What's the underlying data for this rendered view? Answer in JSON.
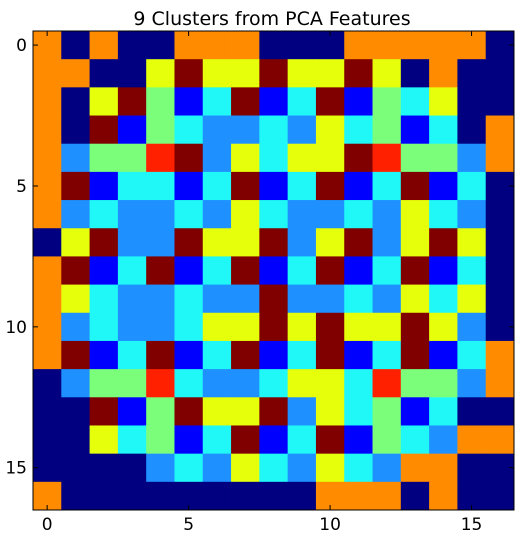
{
  "chart_data": {
    "type": "heatmap",
    "title": "9 Clusters from PCA Features",
    "xlabel": "",
    "ylabel": "",
    "xlim": [
      -0.5,
      16.5
    ],
    "ylim": [
      16.5,
      -0.5
    ],
    "x_ticks": [
      0,
      5,
      10,
      15
    ],
    "y_ticks": [
      0,
      5,
      10,
      15
    ],
    "colormap": "jet",
    "cluster_colors": [
      "#000080",
      "#ff8c00",
      "#e6ff0a",
      "#800000",
      "#0000ff",
      "#20f8f8",
      "#7bff7b",
      "#ff2000",
      "#1e90ff"
    ],
    "grid": [
      [
        1,
        0,
        1,
        0,
        0,
        1,
        1,
        1,
        0,
        0,
        0,
        1,
        1,
        1,
        1,
        1,
        0
      ],
      [
        1,
        1,
        0,
        0,
        2,
        3,
        2,
        2,
        3,
        2,
        2,
        3,
        2,
        0,
        1,
        0,
        0
      ],
      [
        1,
        0,
        2,
        3,
        6,
        4,
        5,
        3,
        4,
        5,
        3,
        4,
        6,
        5,
        2,
        0,
        0
      ],
      [
        1,
        0,
        3,
        4,
        6,
        5,
        8,
        8,
        5,
        8,
        2,
        5,
        6,
        4,
        5,
        0,
        1
      ],
      [
        1,
        8,
        6,
        6,
        7,
        3,
        8,
        2,
        5,
        2,
        2,
        3,
        7,
        6,
        6,
        8,
        1
      ],
      [
        1,
        3,
        4,
        5,
        5,
        4,
        5,
        3,
        4,
        5,
        3,
        4,
        5,
        3,
        4,
        5,
        0
      ],
      [
        1,
        8,
        5,
        8,
        8,
        5,
        8,
        2,
        5,
        8,
        8,
        5,
        8,
        2,
        5,
        8,
        0
      ],
      [
        0,
        2,
        3,
        8,
        8,
        3,
        2,
        2,
        3,
        8,
        2,
        3,
        8,
        2,
        3,
        2,
        0
      ],
      [
        1,
        3,
        4,
        5,
        3,
        4,
        5,
        3,
        4,
        5,
        3,
        4,
        5,
        3,
        4,
        5,
        0
      ],
      [
        1,
        2,
        5,
        8,
        8,
        5,
        8,
        8,
        3,
        8,
        8,
        5,
        8,
        2,
        5,
        2,
        0
      ],
      [
        1,
        8,
        5,
        8,
        8,
        5,
        2,
        2,
        3,
        2,
        3,
        2,
        2,
        3,
        2,
        8,
        0
      ],
      [
        1,
        3,
        4,
        5,
        3,
        4,
        5,
        3,
        4,
        5,
        3,
        4,
        5,
        3,
        4,
        5,
        1
      ],
      [
        0,
        8,
        6,
        6,
        7,
        5,
        8,
        8,
        5,
        2,
        2,
        5,
        7,
        6,
        6,
        8,
        1
      ],
      [
        0,
        0,
        3,
        4,
        6,
        3,
        2,
        2,
        3,
        8,
        2,
        5,
        6,
        4,
        5,
        0,
        0
      ],
      [
        0,
        0,
        2,
        5,
        6,
        4,
        5,
        3,
        4,
        5,
        3,
        4,
        6,
        5,
        8,
        1,
        1
      ],
      [
        0,
        0,
        0,
        0,
        8,
        5,
        8,
        2,
        5,
        8,
        2,
        5,
        8,
        1,
        1,
        0,
        0
      ],
      [
        1,
        0,
        0,
        0,
        0,
        0,
        0,
        0,
        0,
        0,
        1,
        1,
        1,
        0,
        1,
        0,
        0
      ]
    ]
  }
}
